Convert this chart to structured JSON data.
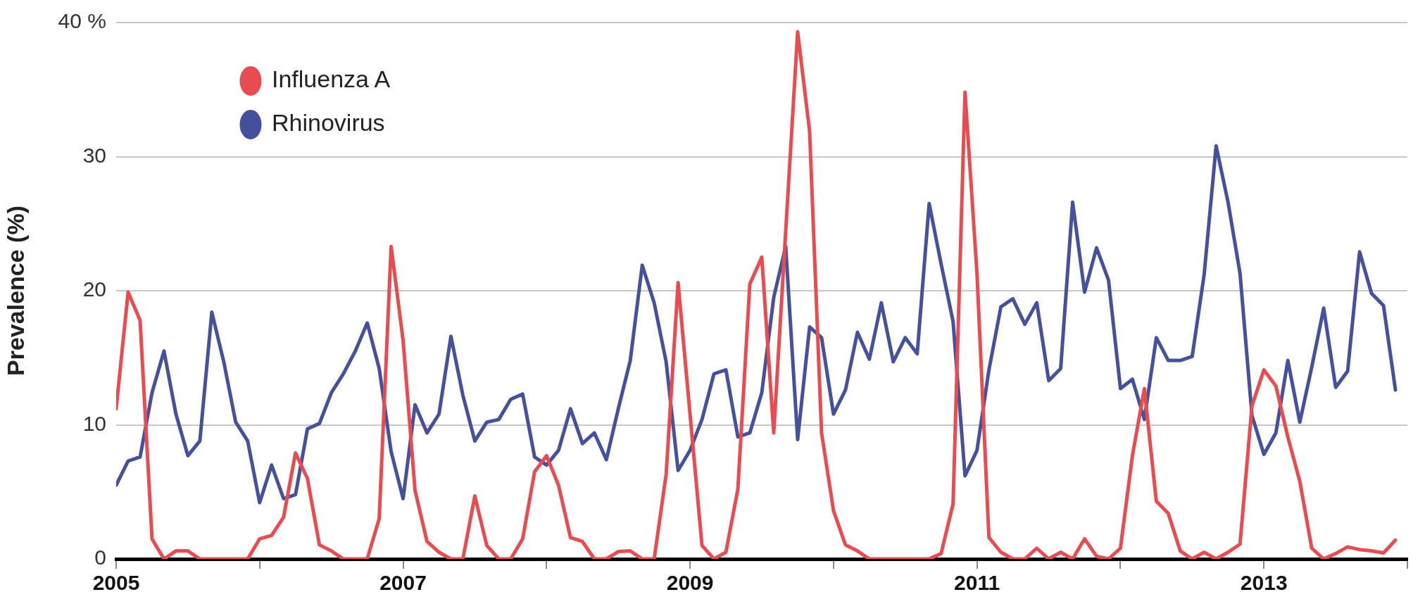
{
  "chart_data": {
    "type": "line",
    "ylabel": "Prevalence (%)",
    "x": [
      "2005-01",
      "2005-02",
      "2005-03",
      "2005-04",
      "2005-05",
      "2005-06",
      "2005-07",
      "2005-08",
      "2005-09",
      "2005-10",
      "2005-11",
      "2005-12",
      "2006-01",
      "2006-02",
      "2006-03",
      "2006-04",
      "2006-05",
      "2006-06",
      "2006-07",
      "2006-08",
      "2006-09",
      "2006-10",
      "2006-11",
      "2006-12",
      "2007-01",
      "2007-02",
      "2007-03",
      "2007-04",
      "2007-05",
      "2007-06",
      "2007-07",
      "2007-08",
      "2007-09",
      "2007-10",
      "2007-11",
      "2007-12",
      "2008-01",
      "2008-02",
      "2008-03",
      "2008-04",
      "2008-05",
      "2008-06",
      "2008-07",
      "2008-08",
      "2008-09",
      "2008-10",
      "2008-11",
      "2008-12",
      "2009-01",
      "2009-02",
      "2009-03",
      "2009-04",
      "2009-05",
      "2009-06",
      "2009-07",
      "2009-08",
      "2009-09",
      "2009-10",
      "2009-11",
      "2009-12",
      "2010-01",
      "2010-02",
      "2010-03",
      "2010-04",
      "2010-05",
      "2010-06",
      "2010-07",
      "2010-08",
      "2010-09",
      "2010-10",
      "2010-11",
      "2010-12",
      "2011-01",
      "2011-02",
      "2011-03",
      "2011-04",
      "2011-05",
      "2011-06",
      "2011-07",
      "2011-08",
      "2011-09",
      "2011-10",
      "2011-11",
      "2011-12",
      "2012-01",
      "2012-02",
      "2012-03",
      "2012-04",
      "2012-05",
      "2012-06",
      "2012-07",
      "2012-08",
      "2012-09",
      "2012-10",
      "2012-11",
      "2012-12",
      "2013-01",
      "2013-02",
      "2013-03",
      "2013-04",
      "2013-05",
      "2013-06",
      "2013-07",
      "2013-08",
      "2013-09",
      "2013-10",
      "2013-11",
      "2013-12"
    ],
    "series": [
      {
        "name": "Influenza A",
        "color": "#e84c50",
        "values": [
          11.2,
          19.9,
          17.8,
          1.5,
          0,
          0.6,
          0.6,
          0,
          0,
          0,
          0,
          0,
          1.5,
          1.75,
          3.1,
          7.9,
          6,
          1.05,
          0.6,
          0,
          0,
          0,
          3,
          23.3,
          16.3,
          5.1,
          1.3,
          0.5,
          0,
          0,
          4.7,
          1,
          0,
          0,
          1.5,
          6.5,
          7.7,
          5.5,
          1.6,
          1.3,
          0,
          0,
          0.55,
          0.6,
          0,
          0,
          6.3,
          20.6,
          10.8,
          1,
          0,
          0.5,
          5.2,
          20.5,
          22.5,
          9.4,
          24.4,
          39.3,
          31.9,
          9.4,
          3.6,
          1.05,
          0.6,
          0,
          0,
          0,
          0,
          0,
          0,
          0.4,
          4.1,
          34.8,
          21.3,
          1.6,
          0.5,
          0,
          0,
          0.8,
          0,
          0.5,
          0,
          1.5,
          0.2,
          0,
          0.8,
          7.7,
          12.7,
          4.3,
          3.4,
          0.6,
          0,
          0.5,
          0,
          0.5,
          1.1,
          11.4,
          14.1,
          12.9,
          9.1,
          5.8,
          0.8,
          0,
          0.4,
          0.9,
          0.7,
          0.6,
          0.45,
          1.4
        ]
      },
      {
        "name": "Rhinovirus",
        "color": "#46519e",
        "values": [
          5.5,
          7.3,
          7.6,
          12.4,
          15.5,
          10.8,
          7.7,
          8.8,
          18.4,
          14.7,
          10.2,
          8.8,
          4.2,
          7,
          4.5,
          4.8,
          9.7,
          10.1,
          12.4,
          13.8,
          15.5,
          17.6,
          14.2,
          8,
          4.5,
          11.5,
          9.4,
          10.8,
          16.6,
          12.2,
          8.8,
          10.2,
          10.4,
          11.9,
          12.3,
          7.6,
          7,
          8.1,
          11.2,
          8.6,
          9.4,
          7.4,
          11.2,
          14.8,
          21.9,
          19.1,
          14.7,
          6.6,
          8.1,
          10.4,
          13.8,
          14.1,
          9.1,
          9.4,
          12.4,
          19.5,
          23.3,
          8.9,
          17.3,
          16.5,
          10.8,
          12.6,
          16.9,
          14.9,
          19.1,
          14.7,
          16.5,
          15.3,
          26.5,
          22,
          17.7,
          6.2,
          8.1,
          14.1,
          18.8,
          19.4,
          17.5,
          19.1,
          13.3,
          14.2,
          26.6,
          19.9,
          23.2,
          20.8,
          12.7,
          13.4,
          10.4,
          16.5,
          14.8,
          14.8,
          15.1,
          21.2,
          30.8,
          26.6,
          21.3,
          10.7,
          7.8,
          9.4,
          14.8,
          10.2,
          14.3,
          18.7,
          12.8,
          14,
          22.9,
          19.8,
          18.9,
          12.6
        ]
      }
    ],
    "xlim": [
      "2005-01",
      "2014-01"
    ],
    "xticks": [
      "2005",
      {
        "value": "2006",
        "label": null
      },
      "2007",
      {
        "value": "2008",
        "label": null
      },
      "2009",
      {
        "value": "2010",
        "label": null
      },
      "2011",
      {
        "value": "2012",
        "label": null
      },
      "2013",
      {
        "value": "2014",
        "label": null
      }
    ],
    "ylim": [
      0,
      40
    ],
    "yticks": [
      0,
      10,
      20,
      30,
      {
        "value": 40,
        "label": "40 %"
      }
    ],
    "grid": "y",
    "legend": "top left",
    "marker": "none",
    "line_style": "solid"
  }
}
